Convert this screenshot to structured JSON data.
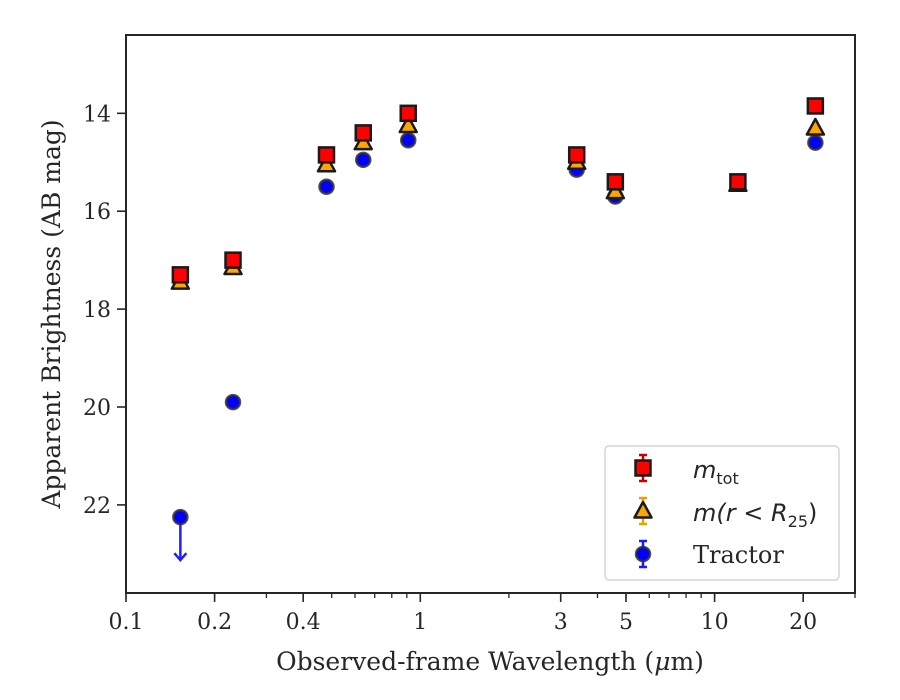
{
  "chart_data": {
    "type": "scatter",
    "xlabel_text": "Observed-frame Wavelength (",
    "xlabel_mu": "μ",
    "xlabel_unit": "m)",
    "ylabel": "Apparent Brightness (AB mag)",
    "xscale": "log",
    "xlim": [
      0.1,
      30
    ],
    "ylim": [
      23.8,
      12.4
    ],
    "y_inverted": true,
    "grid": false,
    "legend_position": "lower-right",
    "x_tick_labels": [
      "0.1",
      "0.2",
      "0.4",
      "1",
      "3",
      "5",
      "10",
      "20"
    ],
    "x_ticks": [
      0.1,
      0.2,
      0.4,
      1,
      3,
      5,
      10,
      20
    ],
    "y_tick_labels": [
      "14",
      "16",
      "18",
      "20",
      "22"
    ],
    "y_ticks": [
      14,
      16,
      18,
      20,
      22
    ],
    "series": [
      {
        "name_display": "m_tot",
        "label_main": "m",
        "label_sub": "tot",
        "marker": "square",
        "color": "#ff0000",
        "errorbar_color": "#cc0000",
        "x": [
          0.153,
          0.231,
          0.48,
          0.64,
          0.91,
          3.4,
          4.6,
          12,
          22
        ],
        "y": [
          17.3,
          17.0,
          14.85,
          14.4,
          14.0,
          14.85,
          15.4,
          15.4,
          13.85
        ]
      },
      {
        "name_display": "m(r < R_25)",
        "label_main": "m(r < R",
        "label_sub": "25",
        "label_end": ")",
        "marker": "triangle",
        "color": "#ffa500",
        "errorbar_color": "#e6a000",
        "x": [
          0.153,
          0.231,
          0.48,
          0.64,
          0.91,
          3.4,
          4.6,
          12,
          22
        ],
        "y": [
          17.45,
          17.15,
          15.05,
          14.6,
          14.25,
          15.0,
          15.6,
          15.45,
          14.3
        ]
      },
      {
        "name_display": "Tractor",
        "label_main": "Tractor",
        "marker": "circle",
        "color": "#0000ff",
        "errorbar_color": "#1a1aff",
        "x": [
          0.153,
          0.231,
          0.48,
          0.64,
          0.91,
          3.4,
          4.6,
          12,
          22
        ],
        "y": [
          22.25,
          19.9,
          15.5,
          14.95,
          14.55,
          15.15,
          15.7,
          15.4,
          14.6
        ],
        "upper_limits": [
          0
        ]
      }
    ]
  }
}
